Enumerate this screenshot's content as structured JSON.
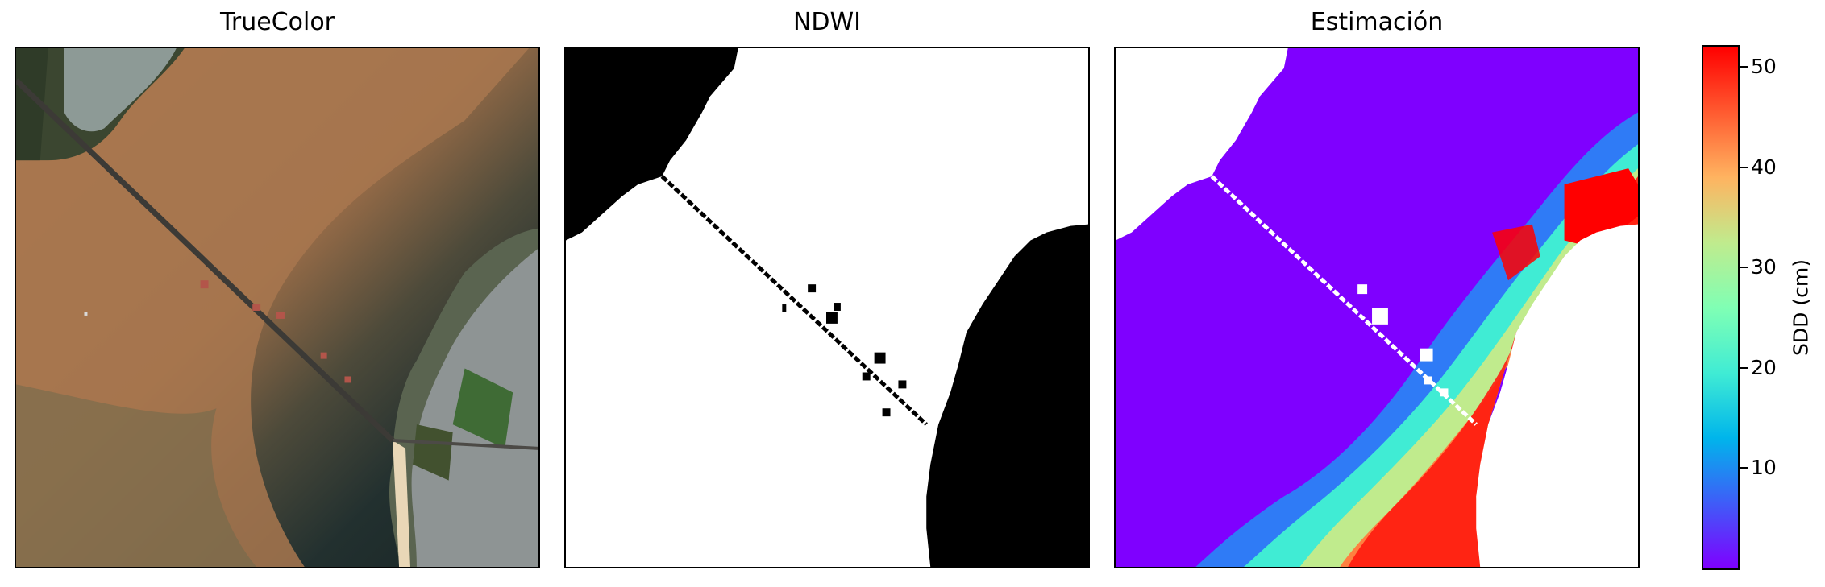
{
  "panels": [
    {
      "title": "TrueColor"
    },
    {
      "title": "NDWI"
    },
    {
      "title": "Estimación"
    }
  ],
  "colorbar": {
    "label": "SDD (cm)",
    "colormap": "rainbow",
    "range": [
      0,
      52
    ],
    "ticks": [
      "10",
      "20",
      "30",
      "40",
      "50"
    ],
    "tick_values": [
      10,
      20,
      30,
      40,
      50
    ],
    "colors": [
      "#7f00ff",
      "#3f5cf8",
      "#00b5eb",
      "#40ecd4",
      "#80ffb4",
      "#c0eb8d",
      "#ffb360",
      "#ff5a30",
      "#ff0000"
    ]
  },
  "colors": {
    "water": "#a8774f",
    "dark_water": "#1d2a2c",
    "land": "#000000",
    "masked": "#ffffff"
  }
}
